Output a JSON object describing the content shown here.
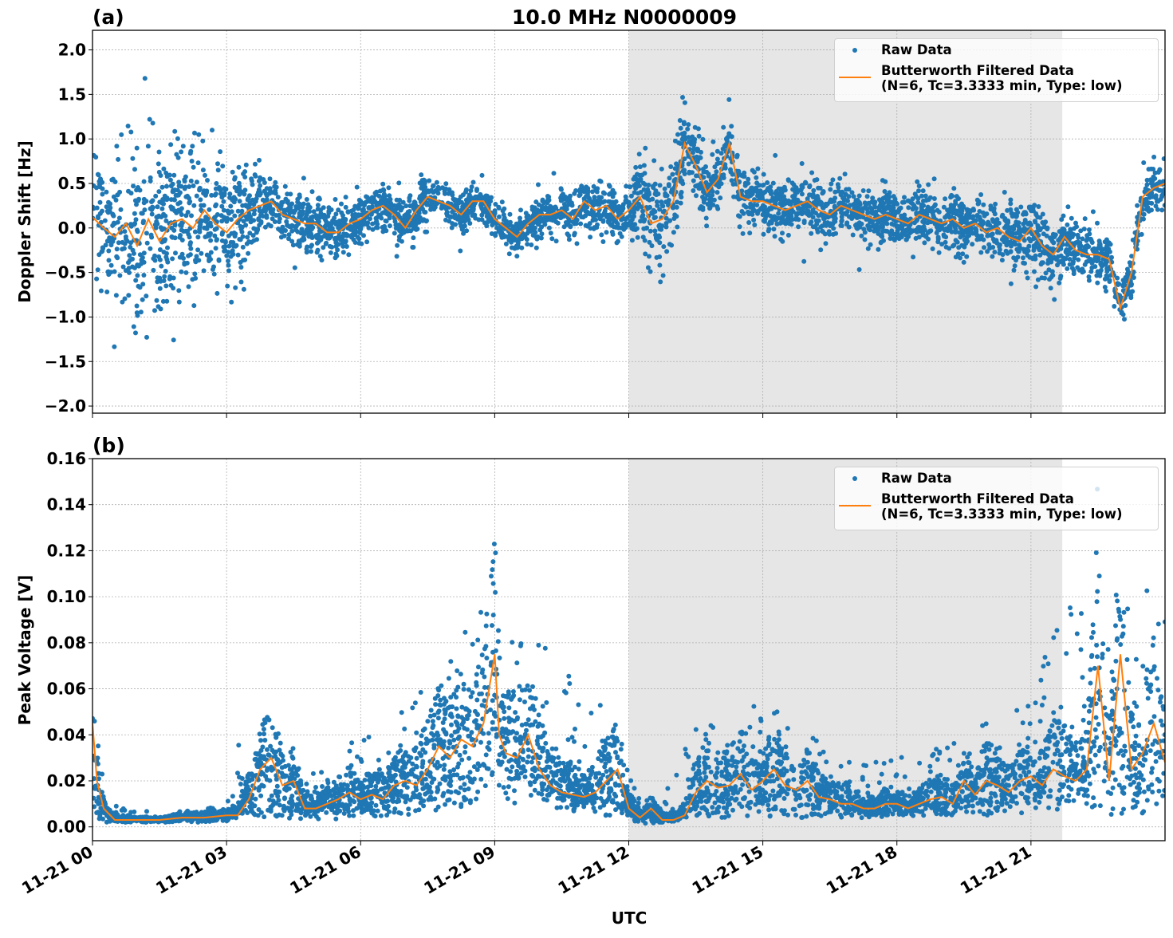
{
  "figure": {
    "title": "10.0 MHz N0000009",
    "xlabel": "UTC",
    "shaded_region_hours": [
      12.0,
      21.7
    ],
    "colors": {
      "raw": "#1f77b4",
      "filtered": "#ff7f0e",
      "shade": "#e6e6e6",
      "grid": "#b0b0b0"
    }
  },
  "chart_data": [
    {
      "type": "scatter",
      "panel_label": "(a)",
      "title": "10.0 MHz N0000009",
      "xlabel": "UTC",
      "ylabel": "Doppler Shift [Hz]",
      "xlim_hours": [
        0,
        24
      ],
      "ylim": [
        -2.08,
        2.22
      ],
      "grid": true,
      "legend": {
        "placement": "top-right",
        "entries": [
          "Raw Data",
          "Butterworth Filtered Data\n(N=6, Tc=3.3333 min, Type: low)"
        ],
        "raw_label": "Raw Data",
        "filtered_label_line1": "Butterworth Filtered Data",
        "filtered_label_line2": "(N=6, Tc=3.3333 min, Type: low)"
      },
      "xticks": {
        "hours": [
          0,
          3,
          6,
          9,
          12,
          15,
          18,
          21
        ],
        "labels": [
          "11-21 00",
          "11-21 03",
          "11-21 06",
          "11-21 09",
          "11-21 12",
          "11-21 15",
          "11-21 18",
          "11-21 21"
        ]
      },
      "yticks": {
        "values": [
          2.0,
          1.5,
          1.0,
          0.5,
          0.0,
          -0.5,
          -1.0,
          -1.5,
          -2.0
        ],
        "labels": [
          "2.0",
          "1.5",
          "1.0",
          "0.5",
          "0.0",
          "−0.5",
          "−1.0",
          "−1.5",
          "−2.0"
        ]
      },
      "series": [
        {
          "name": "Butterworth Filtered Data",
          "x_hours": [
            0,
            0.25,
            0.5,
            0.75,
            1.0,
            1.25,
            1.5,
            1.75,
            2.0,
            2.25,
            2.5,
            2.75,
            3.0,
            3.25,
            3.5,
            3.75,
            4.0,
            4.25,
            4.5,
            4.75,
            5.0,
            5.25,
            5.5,
            5.75,
            6.0,
            6.25,
            6.5,
            6.75,
            7.0,
            7.25,
            7.5,
            7.75,
            8.0,
            8.25,
            8.5,
            8.75,
            9.0,
            9.25,
            9.5,
            9.75,
            10.0,
            10.25,
            10.5,
            10.75,
            11.0,
            11.25,
            11.5,
            11.75,
            12.0,
            12.25,
            12.5,
            12.75,
            13.0,
            13.25,
            13.5,
            13.75,
            14.0,
            14.25,
            14.5,
            14.75,
            15.0,
            15.25,
            15.5,
            15.75,
            16.0,
            16.25,
            16.5,
            16.75,
            17.0,
            17.25,
            17.5,
            17.75,
            18.0,
            18.25,
            18.5,
            18.75,
            19.0,
            19.25,
            19.5,
            19.75,
            20.0,
            20.25,
            20.5,
            20.75,
            21.0,
            21.25,
            21.5,
            21.75,
            22.0,
            22.25,
            22.5,
            22.75,
            23.0,
            23.25,
            23.5,
            23.75,
            24.0
          ],
          "y": [
            0.12,
            0.0,
            -0.1,
            0.05,
            -0.2,
            0.1,
            -0.15,
            0.05,
            0.1,
            0.0,
            0.2,
            0.05,
            -0.05,
            0.1,
            0.2,
            0.25,
            0.3,
            0.15,
            0.1,
            0.05,
            0.05,
            -0.05,
            -0.05,
            0.05,
            0.1,
            0.2,
            0.25,
            0.15,
            0.0,
            0.2,
            0.35,
            0.3,
            0.25,
            0.15,
            0.3,
            0.3,
            0.1,
            0.0,
            -0.1,
            0.05,
            0.15,
            0.15,
            0.2,
            0.1,
            0.3,
            0.2,
            0.25,
            0.1,
            0.2,
            0.35,
            0.05,
            0.1,
            0.3,
            0.95,
            0.7,
            0.4,
            0.55,
            0.95,
            0.35,
            0.3,
            0.3,
            0.25,
            0.2,
            0.25,
            0.3,
            0.2,
            0.15,
            0.25,
            0.2,
            0.15,
            0.1,
            0.15,
            0.1,
            0.05,
            0.15,
            0.1,
            0.05,
            0.1,
            0.0,
            0.05,
            -0.05,
            0.0,
            -0.1,
            -0.15,
            0.0,
            -0.2,
            -0.3,
            -0.1,
            -0.25,
            -0.3,
            -0.3,
            -0.35,
            -0.9,
            -0.5,
            0.35,
            0.45,
            0.5
          ]
        },
        {
          "name": "Raw Data",
          "x_hours": [
            0,
            1,
            2,
            3,
            4,
            5,
            6,
            7,
            8,
            9,
            10,
            11,
            12,
            12.5,
            13,
            13.5,
            14,
            15,
            16,
            17,
            18,
            19,
            20,
            21,
            22,
            23,
            23.5,
            24
          ],
          "spread": [
            0.9,
            1.1,
            1.0,
            0.8,
            0.35,
            0.35,
            0.3,
            0.3,
            0.25,
            0.2,
            0.25,
            0.3,
            0.35,
            0.6,
            0.55,
            0.4,
            0.35,
            0.35,
            0.35,
            0.35,
            0.35,
            0.35,
            0.35,
            0.4,
            0.35,
            0.3,
            0.3,
            0.3
          ]
        }
      ]
    },
    {
      "type": "scatter",
      "panel_label": "(b)",
      "xlabel": "UTC",
      "ylabel": "Peak Voltage [V]",
      "xlim_hours": [
        0,
        24
      ],
      "ylim": [
        -0.006,
        0.16
      ],
      "grid": true,
      "legend": {
        "placement": "top-right",
        "raw_label": "Raw Data",
        "filtered_label_line1": "Butterworth Filtered Data",
        "filtered_label_line2": "(N=6, Tc=3.3333 min, Type: low)"
      },
      "xticks": {
        "hours": [
          0,
          3,
          6,
          9,
          12,
          15,
          18,
          21
        ],
        "labels": [
          "11-21 00",
          "11-21 03",
          "11-21 06",
          "11-21 09",
          "11-21 12",
          "11-21 15",
          "11-21 18",
          "11-21 21"
        ]
      },
      "yticks": {
        "values": [
          0.16,
          0.14,
          0.12,
          0.1,
          0.08,
          0.06,
          0.04,
          0.02,
          0.0
        ],
        "labels": [
          "0.16",
          "0.14",
          "0.12",
          "0.10",
          "0.08",
          "0.06",
          "0.04",
          "0.02",
          "0.00"
        ]
      },
      "series": [
        {
          "name": "Butterworth Filtered Data",
          "x_hours": [
            0,
            0.1,
            0.25,
            0.5,
            0.75,
            1.0,
            1.5,
            2.0,
            2.5,
            3.0,
            3.25,
            3.5,
            3.75,
            4.0,
            4.25,
            4.5,
            4.75,
            5.0,
            5.25,
            5.5,
            5.75,
            6.0,
            6.25,
            6.5,
            6.75,
            7.0,
            7.25,
            7.5,
            7.75,
            8.0,
            8.25,
            8.5,
            8.75,
            9.0,
            9.1,
            9.25,
            9.5,
            9.75,
            10.0,
            10.25,
            10.5,
            10.75,
            11.0,
            11.25,
            11.5,
            11.75,
            12.0,
            12.25,
            12.5,
            12.75,
            13.0,
            13.25,
            13.5,
            13.75,
            14.0,
            14.25,
            14.5,
            14.75,
            15.0,
            15.25,
            15.5,
            15.75,
            16.0,
            16.25,
            16.5,
            16.75,
            17.0,
            17.25,
            17.5,
            17.75,
            18.0,
            18.25,
            18.5,
            18.75,
            19.0,
            19.25,
            19.5,
            19.75,
            20.0,
            20.25,
            20.5,
            20.75,
            21.0,
            21.25,
            21.5,
            21.75,
            22.0,
            22.25,
            22.5,
            22.75,
            23.0,
            23.25,
            23.5,
            23.75,
            24.0
          ],
          "y": [
            0.045,
            0.02,
            0.008,
            0.003,
            0.003,
            0.003,
            0.003,
            0.004,
            0.004,
            0.005,
            0.005,
            0.012,
            0.025,
            0.03,
            0.018,
            0.02,
            0.008,
            0.008,
            0.01,
            0.012,
            0.015,
            0.012,
            0.014,
            0.012,
            0.018,
            0.02,
            0.018,
            0.025,
            0.035,
            0.03,
            0.038,
            0.035,
            0.045,
            0.075,
            0.04,
            0.032,
            0.03,
            0.04,
            0.025,
            0.018,
            0.015,
            0.014,
            0.013,
            0.015,
            0.02,
            0.025,
            0.008,
            0.004,
            0.008,
            0.003,
            0.003,
            0.005,
            0.015,
            0.02,
            0.017,
            0.018,
            0.023,
            0.016,
            0.02,
            0.025,
            0.018,
            0.016,
            0.02,
            0.013,
            0.012,
            0.01,
            0.01,
            0.008,
            0.008,
            0.01,
            0.01,
            0.008,
            0.01,
            0.012,
            0.013,
            0.01,
            0.02,
            0.014,
            0.02,
            0.018,
            0.015,
            0.02,
            0.022,
            0.018,
            0.025,
            0.022,
            0.02,
            0.025,
            0.07,
            0.02,
            0.075,
            0.025,
            0.032,
            0.045,
            0.028
          ]
        },
        {
          "name": "Raw Data",
          "x_hours": [
            0,
            0.3,
            1,
            2,
            3,
            3.5,
            4,
            5,
            6,
            7,
            8,
            9,
            9.5,
            10,
            11,
            11.5,
            12,
            12.5,
            13,
            13.5,
            14,
            15,
            16,
            17,
            18,
            19,
            20,
            21,
            22,
            22.5,
            23,
            23.5,
            24
          ],
          "upper": [
            0.085,
            0.01,
            0.007,
            0.007,
            0.01,
            0.06,
            0.045,
            0.03,
            0.04,
            0.055,
            0.085,
            0.125,
            0.09,
            0.1,
            0.05,
            0.06,
            0.025,
            0.015,
            0.02,
            0.05,
            0.05,
            0.055,
            0.04,
            0.03,
            0.03,
            0.035,
            0.045,
            0.055,
            0.12,
            0.15,
            0.09,
            0.11,
            0.09
          ],
          "lower": [
            0.005,
            0.002,
            0.002,
            0.002,
            0.002,
            0.005,
            0.004,
            0.003,
            0.004,
            0.005,
            0.008,
            0.01,
            0.01,
            0.008,
            0.006,
            0.004,
            0.002,
            0.001,
            0.002,
            0.004,
            0.004,
            0.004,
            0.004,
            0.004,
            0.004,
            0.005,
            0.005,
            0.006,
            0.007,
            0.005,
            0.005,
            0.006,
            0.005
          ]
        }
      ]
    }
  ]
}
